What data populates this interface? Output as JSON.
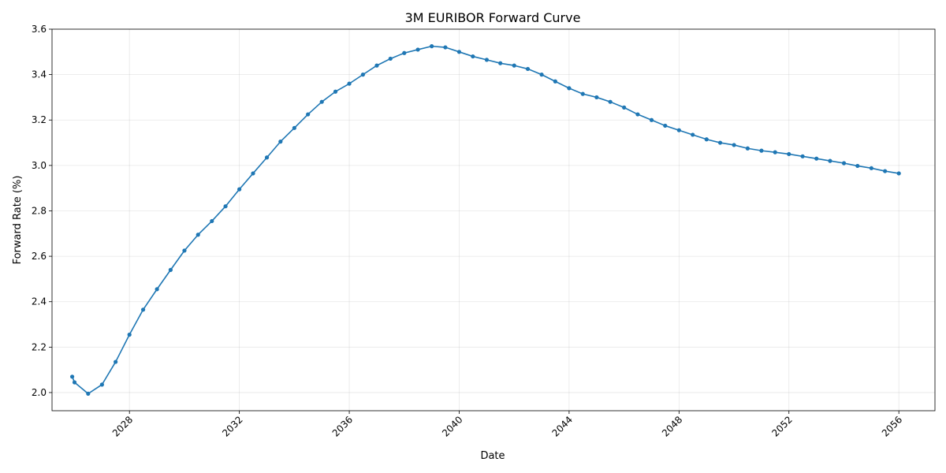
{
  "chart_data": {
    "type": "line",
    "title": "3M EURIBOR Forward Curve",
    "xlabel": "Date",
    "ylabel": "Forward Rate (%)",
    "xlim": [
      "2025-03-08",
      "2057-04-25"
    ],
    "ylim": [
      1.92,
      3.6
    ],
    "x_ticks": [
      "2028",
      "2032",
      "2036",
      "2040",
      "2044",
      "2048",
      "2052",
      "2056"
    ],
    "y_ticks": [
      "2.0",
      "2.2",
      "2.4",
      "2.6",
      "2.8",
      "3.0",
      "3.2",
      "3.4",
      "3.6"
    ],
    "grid": true,
    "line_color": "#1f77b4",
    "series": [
      {
        "x": [
          "2025-12-01",
          "2026-01-01",
          "2026-07-01",
          "2027-01-01",
          "2027-07-01",
          "2028-01-01",
          "2028-07-01",
          "2029-01-01",
          "2029-07-01",
          "2030-01-01",
          "2030-07-01",
          "2031-01-01",
          "2031-07-01",
          "2032-01-01",
          "2032-07-01",
          "2033-01-01",
          "2033-07-01",
          "2034-01-01",
          "2034-07-01",
          "2035-01-01",
          "2035-07-01",
          "2036-01-01",
          "2036-07-01",
          "2037-01-01",
          "2037-07-01",
          "2038-01-01",
          "2038-07-01",
          "2039-01-01",
          "2039-07-01",
          "2040-01-01",
          "2040-07-01",
          "2041-01-01",
          "2041-07-01",
          "2042-01-01",
          "2042-07-01",
          "2043-01-01",
          "2043-07-01",
          "2044-01-01",
          "2044-07-01",
          "2045-01-01",
          "2045-07-01",
          "2046-01-01",
          "2046-07-01",
          "2047-01-01",
          "2047-07-01",
          "2048-01-01",
          "2048-07-01",
          "2049-01-01",
          "2049-07-01",
          "2050-01-01",
          "2050-07-01",
          "2051-01-01",
          "2051-07-01",
          "2052-01-01",
          "2052-07-01",
          "2053-01-01",
          "2053-07-01",
          "2054-01-01",
          "2054-07-01",
          "2055-01-01",
          "2055-07-01",
          "2056-01-01"
        ],
        "y": [
          2.07,
          2.045,
          1.995,
          2.035,
          2.135,
          2.255,
          2.365,
          2.455,
          2.54,
          2.625,
          2.695,
          2.755,
          2.82,
          2.895,
          2.965,
          3.035,
          3.105,
          3.165,
          3.225,
          3.28,
          3.325,
          3.36,
          3.4,
          3.44,
          3.47,
          3.495,
          3.51,
          3.525,
          3.52,
          3.5,
          3.48,
          3.465,
          3.45,
          3.44,
          3.425,
          3.4,
          3.37,
          3.34,
          3.315,
          3.3,
          3.28,
          3.255,
          3.225,
          3.2,
          3.175,
          3.155,
          3.135,
          3.115,
          3.1,
          3.09,
          3.075,
          3.065,
          3.058,
          3.05,
          3.04,
          3.03,
          3.02,
          3.01,
          2.998,
          2.988,
          2.975,
          2.965
        ]
      }
    ]
  }
}
